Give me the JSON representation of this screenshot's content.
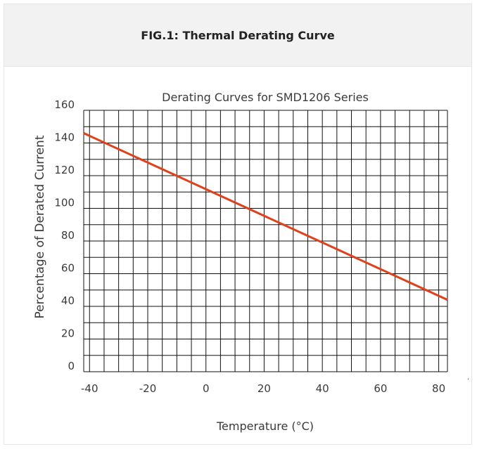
{
  "figure_caption": "FIG.1: Thermal Derating Curve",
  "colors": {
    "line": "#e0401a",
    "grid": "#111111",
    "caption_bg": "#f2f2f2"
  },
  "chart_data": {
    "type": "line",
    "title": "Derating Curves for SMD1206 Series",
    "xlabel": "Temperature (°C)",
    "ylabel": "Percentage of Derated Current",
    "xlim": [
      -42,
      83
    ],
    "ylim": [
      0,
      160
    ],
    "x_ticks": [
      -40,
      -20,
      0,
      20,
      40,
      60,
      80
    ],
    "y_ticks": [
      0,
      20,
      40,
      60,
      80,
      100,
      120,
      140,
      160
    ],
    "grid": true,
    "legend": "none",
    "series": [
      {
        "x": [
          -42,
          83
        ],
        "y": [
          146,
          44
        ]
      }
    ]
  }
}
